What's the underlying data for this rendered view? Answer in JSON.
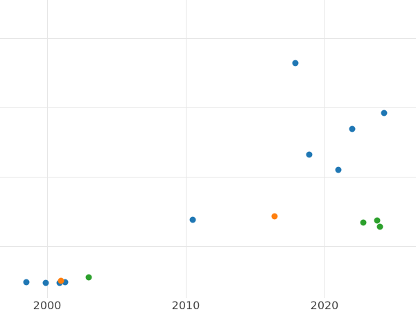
{
  "chart_data": {
    "type": "scatter",
    "title": "",
    "xlabel": "",
    "ylabel": "",
    "xlim": [
      1996.6,
      2026.6
    ],
    "ylim": [
      0.0,
      4.3
    ],
    "x_ticks": [
      2000,
      2010,
      2020
    ],
    "x_tick_labels": [
      "2000",
      "2010",
      "2020"
    ],
    "y_ticks": [
      0.75,
      1.75,
      2.75,
      3.75
    ],
    "grid": true,
    "legend": "none",
    "series": [
      {
        "color": "#1f77b4",
        "points": [
          {
            "x": 1998.5,
            "y": 0.23
          },
          {
            "x": 1999.9,
            "y": 0.22
          },
          {
            "x": 2000.9,
            "y": 0.22
          },
          {
            "x": 2001.3,
            "y": 0.23
          },
          {
            "x": 2010.5,
            "y": 1.13
          },
          {
            "x": 2017.9,
            "y": 3.39
          },
          {
            "x": 2018.9,
            "y": 2.07
          },
          {
            "x": 2021.0,
            "y": 1.85
          },
          {
            "x": 2022.0,
            "y": 2.44
          },
          {
            "x": 2024.3,
            "y": 2.67
          }
        ]
      },
      {
        "color": "#ff7f0e",
        "points": [
          {
            "x": 2001.0,
            "y": 0.25
          },
          {
            "x": 2016.4,
            "y": 1.18
          }
        ]
      },
      {
        "color": "#2ca02c",
        "points": [
          {
            "x": 2003.0,
            "y": 0.3
          },
          {
            "x": 2022.8,
            "y": 1.09
          },
          {
            "x": 2023.8,
            "y": 1.12
          },
          {
            "x": 2024.0,
            "y": 1.03
          }
        ]
      }
    ]
  }
}
